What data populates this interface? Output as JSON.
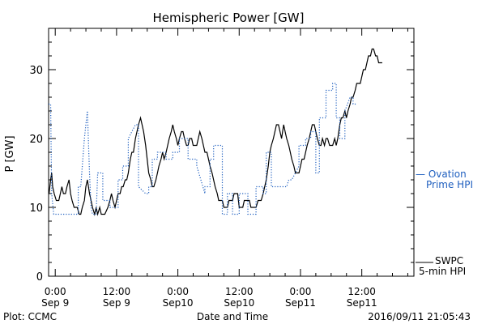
{
  "chart_data": {
    "type": "line",
    "title": "Hemispheric Power [GW]",
    "xlabel": "Date and Time",
    "ylabel": "P [GW]",
    "ylim": [
      0,
      36
    ],
    "xlim": [
      -1.3,
      70.2
    ],
    "x_unit": "hours from 2016-09-09 00:00 UT",
    "yticks": [
      0,
      10,
      20,
      30
    ],
    "xticks": [
      {
        "x": 0,
        "time": "0:00",
        "date": "Sep 9"
      },
      {
        "x": 12,
        "time": "12:00",
        "date": "Sep 9"
      },
      {
        "x": 24,
        "time": "0:00",
        "date": "Sep10"
      },
      {
        "x": 36,
        "time": "12:00",
        "date": "Sep10"
      },
      {
        "x": 48,
        "time": "0:00",
        "date": "Sep11"
      },
      {
        "x": 60,
        "time": "12:00",
        "date": "Sep11"
      }
    ],
    "grid": false,
    "legend_placement": "right-outside",
    "series": [
      {
        "name": "SWPC 5-min HPI",
        "label_lines": [
          "SWPC",
          "5-min HPI"
        ],
        "color": "#000000",
        "style": "solid-step",
        "points": [
          [
            -1.2,
            12
          ],
          [
            -0.9,
            14
          ],
          [
            -0.7,
            15
          ],
          [
            -0.5,
            13
          ],
          [
            -0.2,
            12
          ],
          [
            0.2,
            11
          ],
          [
            0.7,
            11
          ],
          [
            1.0,
            12
          ],
          [
            1.3,
            13
          ],
          [
            1.6,
            12
          ],
          [
            2.0,
            12
          ],
          [
            2.3,
            13
          ],
          [
            2.7,
            14
          ],
          [
            3.0,
            12
          ],
          [
            3.3,
            11
          ],
          [
            3.7,
            10
          ],
          [
            4.3,
            10
          ],
          [
            4.7,
            9
          ],
          [
            5.0,
            9
          ],
          [
            5.3,
            10
          ],
          [
            5.7,
            11
          ],
          [
            6.0,
            13
          ],
          [
            6.3,
            14
          ],
          [
            6.7,
            12
          ],
          [
            7.0,
            11
          ],
          [
            7.3,
            10
          ],
          [
            7.7,
            9
          ],
          [
            8.0,
            10
          ],
          [
            8.3,
            9
          ],
          [
            8.7,
            10
          ],
          [
            9.0,
            9
          ],
          [
            9.7,
            9
          ],
          [
            10.3,
            10
          ],
          [
            10.7,
            11
          ],
          [
            11.0,
            12
          ],
          [
            11.3,
            11
          ],
          [
            11.7,
            10
          ],
          [
            12.0,
            11
          ],
          [
            12.3,
            12
          ],
          [
            12.7,
            12
          ],
          [
            13.0,
            13
          ],
          [
            13.3,
            13
          ],
          [
            13.7,
            14
          ],
          [
            14.0,
            14
          ],
          [
            14.3,
            15
          ],
          [
            14.7,
            17
          ],
          [
            15.0,
            18
          ],
          [
            15.3,
            18
          ],
          [
            15.7,
            20
          ],
          [
            16.0,
            21
          ],
          [
            16.3,
            22
          ],
          [
            16.7,
            23
          ],
          [
            17.0,
            22
          ],
          [
            17.3,
            21
          ],
          [
            17.7,
            19
          ],
          [
            18.0,
            17
          ],
          [
            18.3,
            15
          ],
          [
            18.7,
            14
          ],
          [
            19.0,
            13
          ],
          [
            19.3,
            13
          ],
          [
            19.7,
            14
          ],
          [
            20.0,
            15
          ],
          [
            20.3,
            16
          ],
          [
            20.7,
            17
          ],
          [
            21.0,
            18
          ],
          [
            21.3,
            17
          ],
          [
            21.7,
            18
          ],
          [
            22.0,
            19
          ],
          [
            22.3,
            20
          ],
          [
            22.7,
            21
          ],
          [
            23.0,
            22
          ],
          [
            23.3,
            21
          ],
          [
            23.7,
            20
          ],
          [
            24.0,
            19
          ],
          [
            24.3,
            20
          ],
          [
            24.7,
            21
          ],
          [
            25.0,
            21
          ],
          [
            25.3,
            20
          ],
          [
            25.7,
            19
          ],
          [
            26.0,
            19
          ],
          [
            26.3,
            20
          ],
          [
            26.7,
            20
          ],
          [
            27.0,
            19
          ],
          [
            27.7,
            19
          ],
          [
            28.0,
            20
          ],
          [
            28.3,
            21
          ],
          [
            28.7,
            20
          ],
          [
            29.0,
            19
          ],
          [
            29.3,
            18
          ],
          [
            29.7,
            18
          ],
          [
            30.0,
            17
          ],
          [
            30.3,
            16
          ],
          [
            30.7,
            15
          ],
          [
            31.0,
            14
          ],
          [
            31.3,
            13
          ],
          [
            31.7,
            12
          ],
          [
            32.0,
            11
          ],
          [
            32.7,
            11
          ],
          [
            33.0,
            10
          ],
          [
            33.7,
            10
          ],
          [
            34.0,
            11
          ],
          [
            34.7,
            11
          ],
          [
            35.0,
            12
          ],
          [
            35.7,
            12
          ],
          [
            36.0,
            10
          ],
          [
            36.7,
            10
          ],
          [
            37.0,
            11
          ],
          [
            38.0,
            11
          ],
          [
            38.3,
            10
          ],
          [
            39.3,
            10
          ],
          [
            39.7,
            11
          ],
          [
            40.3,
            11
          ],
          [
            40.7,
            12
          ],
          [
            41.0,
            13
          ],
          [
            41.3,
            14
          ],
          [
            41.7,
            16
          ],
          [
            42.0,
            18
          ],
          [
            42.3,
            19
          ],
          [
            42.7,
            20
          ],
          [
            43.0,
            21
          ],
          [
            43.3,
            22
          ],
          [
            43.7,
            22
          ],
          [
            44.0,
            21
          ],
          [
            44.3,
            20
          ],
          [
            44.7,
            22
          ],
          [
            45.0,
            21
          ],
          [
            45.3,
            20
          ],
          [
            45.7,
            19
          ],
          [
            46.0,
            18
          ],
          [
            46.3,
            17
          ],
          [
            46.7,
            16
          ],
          [
            47.0,
            15
          ],
          [
            47.7,
            15
          ],
          [
            48.0,
            16
          ],
          [
            48.3,
            17
          ],
          [
            48.7,
            17
          ],
          [
            49.0,
            18
          ],
          [
            49.3,
            19
          ],
          [
            49.7,
            20
          ],
          [
            50.0,
            21
          ],
          [
            50.3,
            22
          ],
          [
            50.7,
            22
          ],
          [
            51.0,
            21
          ],
          [
            51.3,
            20
          ],
          [
            51.7,
            19
          ],
          [
            52.0,
            19
          ],
          [
            52.3,
            20
          ],
          [
            52.7,
            19
          ],
          [
            53.0,
            20
          ],
          [
            53.3,
            20
          ],
          [
            53.7,
            19
          ],
          [
            54.0,
            19
          ],
          [
            54.3,
            19
          ],
          [
            54.7,
            20
          ],
          [
            55.0,
            19
          ],
          [
            55.3,
            20
          ],
          [
            55.7,
            22
          ],
          [
            56.0,
            23
          ],
          [
            56.3,
            23
          ],
          [
            56.7,
            24
          ],
          [
            57.0,
            23
          ],
          [
            57.3,
            24
          ],
          [
            57.7,
            25
          ],
          [
            58.0,
            26
          ],
          [
            58.3,
            26
          ],
          [
            58.7,
            27
          ],
          [
            59.0,
            28
          ],
          [
            59.3,
            28
          ],
          [
            59.7,
            28
          ],
          [
            60.0,
            29
          ],
          [
            60.3,
            30
          ],
          [
            60.7,
            30
          ],
          [
            61.0,
            31
          ],
          [
            61.3,
            32
          ],
          [
            61.7,
            32
          ],
          [
            62.0,
            33
          ],
          [
            62.3,
            33
          ],
          [
            62.7,
            32
          ],
          [
            63.0,
            32
          ],
          [
            63.3,
            31
          ],
          [
            63.7,
            31
          ],
          [
            64.0,
            31
          ]
        ]
      },
      {
        "name": "Ovation Prime HPI",
        "label_lines": [
          "— Ovation",
          "Prime HPI"
        ],
        "color": "#1f5fbf",
        "style": "dotted-step",
        "points": [
          [
            -1.3,
            25
          ],
          [
            -0.9,
            25
          ],
          [
            -0.7,
            12
          ],
          [
            -0.3,
            9
          ],
          [
            4.5,
            9
          ],
          [
            4.5,
            13
          ],
          [
            5.0,
            13
          ],
          [
            5.3,
            16
          ],
          [
            5.7,
            20
          ],
          [
            6.0,
            22
          ],
          [
            6.3,
            24
          ],
          [
            6.7,
            15
          ],
          [
            7.0,
            10
          ],
          [
            7.3,
            9
          ],
          [
            8.0,
            9
          ],
          [
            8.3,
            15
          ],
          [
            9.3,
            15
          ],
          [
            9.3,
            11
          ],
          [
            10.7,
            11
          ],
          [
            10.7,
            10
          ],
          [
            12.3,
            10
          ],
          [
            12.3,
            14
          ],
          [
            13.2,
            14
          ],
          [
            13.2,
            16
          ],
          [
            14.3,
            16
          ],
          [
            14.3,
            20
          ],
          [
            15.7,
            22
          ],
          [
            16.3,
            22
          ],
          [
            16.3,
            13
          ],
          [
            17.7,
            12
          ],
          [
            18.3,
            12
          ],
          [
            18.3,
            13
          ],
          [
            19.0,
            13
          ],
          [
            19.0,
            17
          ],
          [
            20.0,
            17
          ],
          [
            20.0,
            18
          ],
          [
            21.7,
            18
          ],
          [
            21.7,
            17
          ],
          [
            23.0,
            17
          ],
          [
            23.0,
            18
          ],
          [
            24.3,
            18
          ],
          [
            24.3,
            20
          ],
          [
            26.0,
            20
          ],
          [
            26.0,
            17
          ],
          [
            27.7,
            17
          ],
          [
            27.7,
            16
          ],
          [
            29.3,
            12
          ],
          [
            29.3,
            13
          ],
          [
            30.3,
            13
          ],
          [
            30.3,
            17
          ],
          [
            31.0,
            17
          ],
          [
            31.0,
            19
          ],
          [
            32.7,
            19
          ],
          [
            32.7,
            9
          ],
          [
            33.7,
            9
          ],
          [
            33.7,
            12
          ],
          [
            34.7,
            12
          ],
          [
            34.7,
            9
          ],
          [
            36.0,
            9
          ],
          [
            36.0,
            12
          ],
          [
            37.7,
            12
          ],
          [
            37.7,
            9
          ],
          [
            39.3,
            9
          ],
          [
            39.3,
            13
          ],
          [
            40.7,
            13
          ],
          [
            40.7,
            12
          ],
          [
            41.3,
            12
          ],
          [
            41.3,
            18
          ],
          [
            42.3,
            18
          ],
          [
            42.3,
            13
          ],
          [
            45.3,
            13
          ],
          [
            45.7,
            14
          ],
          [
            46.3,
            14
          ],
          [
            47.0,
            15
          ],
          [
            47.7,
            16
          ],
          [
            47.7,
            19
          ],
          [
            49.0,
            19
          ],
          [
            49.0,
            20
          ],
          [
            50.0,
            20
          ],
          [
            50.0,
            21
          ],
          [
            51.0,
            21
          ],
          [
            51.0,
            15
          ],
          [
            51.7,
            15
          ],
          [
            51.7,
            23
          ],
          [
            53.0,
            23
          ],
          [
            53.0,
            27
          ],
          [
            54.3,
            27
          ],
          [
            54.3,
            28
          ],
          [
            55.0,
            28
          ],
          [
            55.0,
            23
          ],
          [
            55.7,
            23
          ],
          [
            55.7,
            20
          ],
          [
            56.7,
            20
          ],
          [
            56.7,
            24
          ],
          [
            57.7,
            26
          ],
          [
            58.3,
            26
          ],
          [
            58.3,
            25
          ],
          [
            59.0,
            25
          ]
        ]
      }
    ],
    "annotations": {
      "credit": "Plot: CCMC",
      "timestamp": "2016/09/11 21:05:43"
    }
  }
}
